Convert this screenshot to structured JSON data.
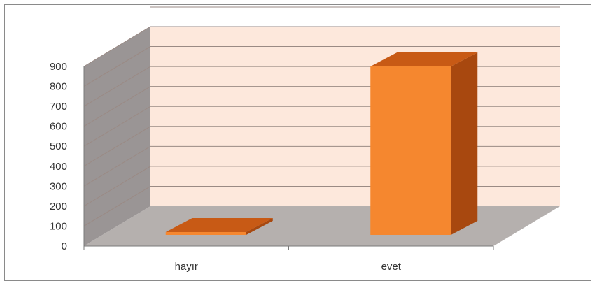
{
  "chart_data": {
    "type": "bar",
    "style": "3d-column",
    "categories": [
      "hayır",
      "evet"
    ],
    "values": [
      5,
      900
    ],
    "ylim": [
      0,
      900
    ],
    "yticks": [
      "0",
      "100",
      "200",
      "300",
      "400",
      "500",
      "600",
      "700",
      "800",
      "900"
    ],
    "grid": true,
    "legend": "none",
    "colors": {
      "bar_front": "#f5872f",
      "bar_top": "#c85a15",
      "bar_side": "#a8480f",
      "back_wall": "#fde8dc",
      "side_wall": "#9a9595",
      "floor": "#b5b0ae",
      "grid": "#9a8a84"
    }
  }
}
